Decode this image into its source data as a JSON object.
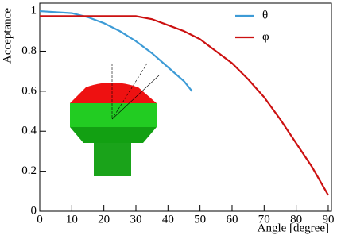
{
  "chart_data": {
    "type": "line",
    "x_label": "Angle [degree]",
    "y_label": "Acceptance",
    "xlim": [
      0,
      91
    ],
    "ylim": [
      0,
      1.04
    ],
    "xticks": [
      0,
      10,
      20,
      30,
      40,
      50,
      60,
      70,
      80,
      90
    ],
    "yticks": [
      0,
      0.2,
      0.4,
      0.6,
      0.8,
      1
    ],
    "legend": "top-right",
    "series": [
      {
        "name": "θ",
        "color": "#3d9bd6",
        "x": [
          0,
          5,
          10,
          15,
          20,
          25,
          30,
          35,
          40,
          45,
          47.5
        ],
        "values": [
          1.0,
          0.995,
          0.99,
          0.97,
          0.94,
          0.9,
          0.85,
          0.79,
          0.72,
          0.65,
          0.6
        ]
      },
      {
        "name": "φ",
        "color": "#cc1111",
        "x": [
          0,
          30,
          35,
          40,
          45,
          50,
          55,
          60,
          65,
          70,
          75,
          80,
          85,
          90
        ],
        "values": [
          0.975,
          0.975,
          0.96,
          0.93,
          0.9,
          0.86,
          0.8,
          0.74,
          0.66,
          0.57,
          0.46,
          0.34,
          0.22,
          0.08
        ]
      }
    ]
  }
}
